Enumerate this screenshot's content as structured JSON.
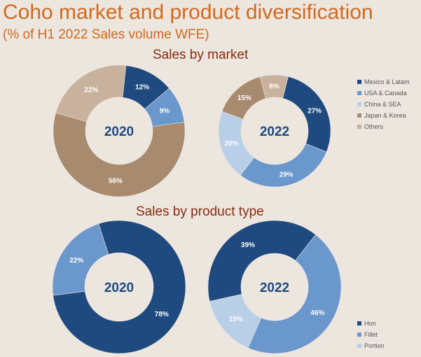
{
  "header": {
    "title": "Coho market and product diversification",
    "subtitle": "(% of H1 2022 Sales volume WFE)"
  },
  "sections": {
    "market_title": "Sales by market",
    "product_title": "Sales by product type"
  },
  "colors": {
    "dark_blue": "#1f4a7f",
    "mid_blue": "#6a97cc",
    "light_blue": "#b9cfe7",
    "brown": "#a88a6e",
    "tan": "#c8b29d",
    "center_text": "#1f4a7f",
    "background": "#ece6df"
  },
  "chart_data": [
    {
      "type": "pie",
      "subtype": "donut",
      "center_label": "2020",
      "categories": [
        "Mexico & Latam",
        "USA & Canada",
        "China & SEA",
        "Japan & Korea",
        "Others"
      ],
      "values": [
        12,
        9,
        0,
        56,
        22
      ],
      "labels": [
        "12%",
        "9%",
        "",
        "56%",
        "22%"
      ]
    },
    {
      "type": "pie",
      "subtype": "donut",
      "center_label": "2022",
      "categories": [
        "Mexico & Latam",
        "USA & Canada",
        "China & SEA",
        "Japan & Korea",
        "Others"
      ],
      "values": [
        27,
        29,
        20,
        15,
        8
      ],
      "labels": [
        "27%",
        "29%",
        "20%",
        "15%",
        "8%"
      ]
    },
    {
      "type": "pie",
      "subtype": "donut",
      "center_label": "2020",
      "categories": [
        "Hon",
        "Fillet",
        "Portion"
      ],
      "values": [
        78,
        22,
        0
      ],
      "labels": [
        "78%",
        "22%",
        ""
      ]
    },
    {
      "type": "pie",
      "subtype": "donut",
      "center_label": "2022",
      "categories": [
        "Hon",
        "Fillet",
        "Portion"
      ],
      "values": [
        39,
        46,
        15
      ],
      "labels": [
        "39%",
        "46%",
        "15%"
      ]
    }
  ],
  "legends": {
    "market": [
      "Mexico & Latam",
      "USA & Canada",
      "China & SEA",
      "Japan & Korea",
      "Others"
    ],
    "product": [
      "Hon",
      "Fillet",
      "Portion"
    ]
  }
}
